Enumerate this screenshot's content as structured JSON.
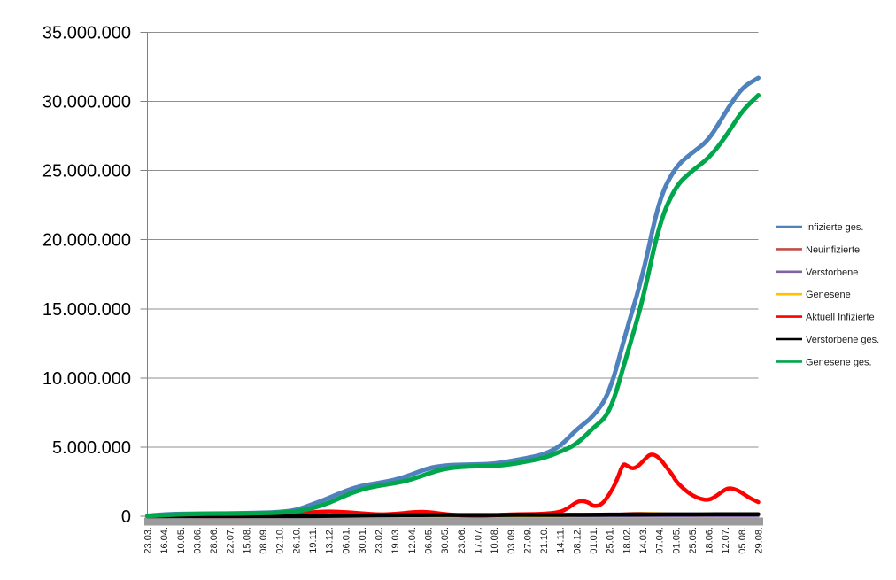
{
  "page": {
    "background": "#ffffff"
  },
  "chart_data": {
    "type": "line",
    "title": "",
    "xlabel": "",
    "ylabel": "",
    "grid": "horizontal",
    "legend_position": "right",
    "axis_color": "#808080",
    "gridline_color": "#8f8f8f",
    "baseline_shadow_color": "#9b9b9b",
    "categories": [
      "23.03.",
      "16.04.",
      "10.05.",
      "03.06.",
      "28.06.",
      "22.07.",
      "15.08.",
      "08.09.",
      "02.10.",
      "26.10.",
      "19.11.",
      "13.12.",
      "06.01.",
      "30.01.",
      "23.02.",
      "19.03.",
      "12.04.",
      "06.05.",
      "30.05.",
      "23.06.",
      "17.07.",
      "10.08.",
      "03.09.",
      "27.09.",
      "21.10.",
      "14.11.",
      "08.12.",
      "01.01.",
      "25.01.",
      "18.02.",
      "14.03.",
      "07.04.",
      "01.05.",
      "25.05.",
      "18.06.",
      "12.07.",
      "05.08.",
      "29.08."
    ],
    "y_axis": {
      "min": 0,
      "max": 35000000,
      "tick_values": [
        0,
        5000000,
        10000000,
        15000000,
        20000000,
        25000000,
        30000000,
        35000000
      ],
      "tick_labels": [
        "0",
        "5.000.000",
        "10.000.000",
        "15.000.000",
        "20.000.000",
        "25.000.000",
        "30.000.000",
        "35.000.000"
      ]
    },
    "series": [
      {
        "name": "Infizierte ges.",
        "color": "#4F81BD",
        "width": 5,
        "values": [
          30000,
          134000,
          170000,
          183000,
          194000,
          203000,
          224000,
          254000,
          295000,
          437000,
          870000,
          1320000,
          1840000,
          2220000,
          2400000,
          2630000,
          3010000,
          3480000,
          3680000,
          3730000,
          3750000,
          3790000,
          3990000,
          4210000,
          4460000,
          5050000,
          6290000,
          7190000,
          8900000,
          13400000,
          17400000,
          23000000,
          25300000,
          26300000,
          27200000,
          29200000,
          31000000,
          31700000
        ]
      },
      {
        "name": "Neuinfizierte",
        "color": "#C0504D",
        "width": 2.5,
        "values": [
          300,
          2500,
          1000,
          400,
          500,
          500,
          1500,
          1500,
          2500,
          11000,
          23000,
          28000,
          22000,
          14000,
          8000,
          16000,
          20000,
          18000,
          7500,
          1500,
          1500,
          4500,
          10000,
          8000,
          15000,
          40000,
          60000,
          40000,
          120000,
          210000,
          250000,
          180000,
          90000,
          50000,
          90000,
          130000,
          90000,
          50000
        ]
      },
      {
        "name": "Verstorbene",
        "color": "#8064A2",
        "width": 2.5,
        "values": [
          50,
          250,
          150,
          50,
          30,
          20,
          25,
          30,
          40,
          100,
          400,
          700,
          900,
          800,
          400,
          250,
          250,
          250,
          150,
          70,
          40,
          40,
          80,
          90,
          130,
          250,
          400,
          350,
          250,
          250,
          300,
          350,
          300,
          150,
          100,
          150,
          150,
          100
        ]
      },
      {
        "name": "Genesene",
        "color": "#FFC000",
        "width": 2.5,
        "values": [
          100,
          2000,
          1500,
          600,
          500,
          500,
          1000,
          1200,
          2000,
          6000,
          17000,
          25000,
          25000,
          18000,
          10000,
          11000,
          17000,
          21000,
          13000,
          4000,
          1800,
          3000,
          8000,
          8500,
          12000,
          27000,
          48000,
          45000,
          90000,
          150000,
          220000,
          230000,
          150000,
          70000,
          70000,
          110000,
          120000,
          70000
        ]
      },
      {
        "name": "Aktuell Infizierte",
        "color": "#FF0000",
        "width": 4.5,
        "x": [
          0,
          1,
          2,
          3,
          4,
          5,
          6,
          7,
          8,
          9,
          9.5,
          10,
          10.5,
          11,
          11.5,
          12,
          12.5,
          13,
          14,
          15,
          16,
          16.5,
          17,
          17.5,
          18,
          19,
          20,
          21,
          22,
          23,
          24,
          25,
          25.5,
          26,
          26.4,
          26.8,
          27,
          27.5,
          28,
          28.4,
          28.8,
          29,
          29.4,
          29.8,
          30.1,
          30.5,
          31,
          31.4,
          31.8,
          32,
          32.5,
          33,
          33.5,
          34,
          34.5,
          35,
          35.3,
          35.7,
          36,
          36.5,
          37
        ],
        "values": [
          22000,
          46000,
          16000,
          9000,
          7000,
          9000,
          13000,
          19000,
          29000,
          95000,
          200000,
          290000,
          330000,
          345000,
          330000,
          300000,
          255000,
          210000,
          125000,
          170000,
          285000,
          320000,
          310000,
          230000,
          150000,
          60000,
          33000,
          60000,
          145000,
          150000,
          165000,
          300000,
          600000,
          1050000,
          1120000,
          950000,
          720000,
          800000,
          1600000,
          2500000,
          3800000,
          3700000,
          3400000,
          3700000,
          4100000,
          4550000,
          4250000,
          3600000,
          3000000,
          2550000,
          1950000,
          1500000,
          1250000,
          1150000,
          1500000,
          1950000,
          2050000,
          1900000,
          1700000,
          1300000,
          1020000
        ]
      },
      {
        "name": "Verstorbene ges.",
        "color": "#000000",
        "width": 4.5,
        "values": [
          200,
          3900,
          7500,
          8500,
          8900,
          9100,
          9200,
          9300,
          9500,
          10000,
          13000,
          21500,
          36000,
          56000,
          68000,
          74000,
          78500,
          84000,
          88000,
          90500,
          91400,
          91800,
          92300,
          93300,
          94800,
          97700,
          104000,
          111500,
          117000,
          121000,
          126000,
          131000,
          135000,
          138000,
          140000,
          142000,
          144500,
          147000
        ]
      },
      {
        "name": "Genesene ges.",
        "color": "#00A64C",
        "width": 5,
        "values": [
          10000,
          80000,
          146000,
          166000,
          179000,
          187000,
          203000,
          227000,
          257000,
          335000,
          570000,
          960000,
          1510000,
          1960000,
          2210000,
          2390000,
          2650000,
          3090000,
          3450000,
          3580000,
          3630000,
          3640000,
          3760000,
          3970000,
          4200000,
          4660000,
          5200000,
          6400000,
          7400000,
          11500000,
          15600000,
          21200000,
          23900000,
          25000000,
          25900000,
          27400000,
          29300000,
          30450000
        ]
      }
    ]
  }
}
